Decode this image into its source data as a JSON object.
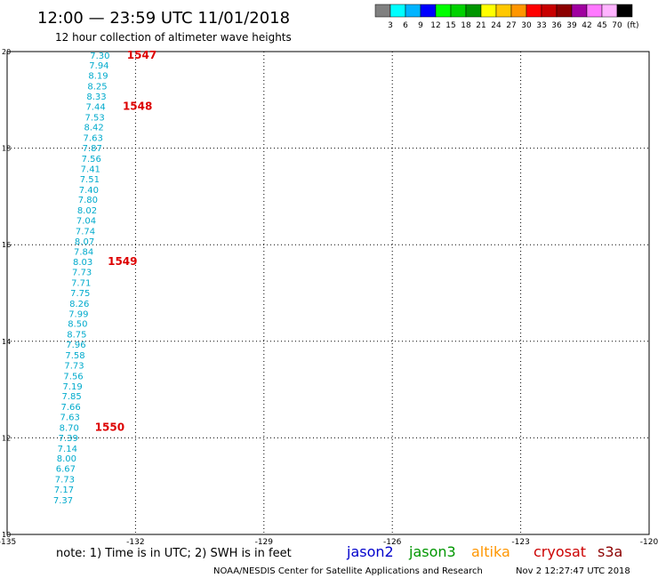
{
  "header": {
    "title": "12:00 — 23:59 UTC 11/01/2018",
    "subtitle": "12 hour collection of altimeter wave heights"
  },
  "legend": {
    "swatches": [
      {
        "color": "#808080",
        "label": "3"
      },
      {
        "color": "#00ffff",
        "label": "6"
      },
      {
        "color": "#00b4ff",
        "label": "9"
      },
      {
        "color": "#0000ff",
        "label": "12"
      },
      {
        "color": "#00ff00",
        "label": "15"
      },
      {
        "color": "#00d200",
        "label": "18"
      },
      {
        "color": "#009600",
        "label": "21"
      },
      {
        "color": "#ffff00",
        "label": "24"
      },
      {
        "color": "#ffc800",
        "label": "27"
      },
      {
        "color": "#ff9600",
        "label": "30"
      },
      {
        "color": "#ff0000",
        "label": "33"
      },
      {
        "color": "#c80000",
        "label": "36"
      },
      {
        "color": "#8c0000",
        "label": "39"
      },
      {
        "color": "#a000a0",
        "label": "42"
      },
      {
        "color": "#ff78ff",
        "label": "45"
      },
      {
        "color": "#ffb4ff",
        "label": "70"
      },
      {
        "color": "#000000",
        "label": ""
      }
    ],
    "unit": "(ft)"
  },
  "footer": {
    "note": "note:  1) Time is in UTC; 2) SWH is in feet",
    "credit": "NOAA/NESDIS Center for Satellite Applications and Research",
    "timestamp": "Nov  2 12:27:47 UTC 2018",
    "satellites": [
      {
        "name": "jason2",
        "color": "#0000cc"
      },
      {
        "name": "jason3",
        "color": "#009600"
      },
      {
        "name": "altika",
        "color": "#ff9600"
      },
      {
        "name": "cryosat",
        "color": "#cc0000"
      },
      {
        "name": "s3a",
        "color": "#8c0000"
      }
    ]
  },
  "chart_data": {
    "type": "scatter",
    "x_ticks": [
      "-135",
      "-132",
      "-129",
      "-126",
      "-123",
      "-120"
    ],
    "y_ticks": [
      "10",
      "12",
      "14",
      "16",
      "18",
      "20"
    ],
    "xlim": [
      -135,
      -120
    ],
    "ylim": [
      10,
      20
    ],
    "grid": true,
    "point_color": "#00aacc",
    "time_color": "#dd0000",
    "points": [
      {
        "lon": -132.6,
        "lat": 19.93,
        "label": "7.30"
      },
      {
        "lon": -132.62,
        "lat": 19.72,
        "label": "7.94"
      },
      {
        "lon": -132.64,
        "lat": 19.51,
        "label": "8.19"
      },
      {
        "lon": -132.66,
        "lat": 19.29,
        "label": "8.25"
      },
      {
        "lon": -132.68,
        "lat": 19.08,
        "label": "8.33"
      },
      {
        "lon": -132.7,
        "lat": 18.87,
        "label": "7.44"
      },
      {
        "lon": -132.72,
        "lat": 18.65,
        "label": "7.53"
      },
      {
        "lon": -132.74,
        "lat": 18.44,
        "label": "8.42"
      },
      {
        "lon": -132.76,
        "lat": 18.22,
        "label": "7.63"
      },
      {
        "lon": -132.78,
        "lat": 18.01,
        "label": "7.87"
      },
      {
        "lon": -132.8,
        "lat": 17.79,
        "label": "7.56"
      },
      {
        "lon": -132.82,
        "lat": 17.58,
        "label": "7.41"
      },
      {
        "lon": -132.84,
        "lat": 17.37,
        "label": "7.51"
      },
      {
        "lon": -132.86,
        "lat": 17.15,
        "label": "7.40"
      },
      {
        "lon": -132.88,
        "lat": 16.94,
        "label": "7.80"
      },
      {
        "lon": -132.9,
        "lat": 16.72,
        "label": "8.02"
      },
      {
        "lon": -132.92,
        "lat": 16.51,
        "label": "7.04"
      },
      {
        "lon": -132.94,
        "lat": 16.29,
        "label": "7.74"
      },
      {
        "lon": -132.96,
        "lat": 16.08,
        "label": "8.07"
      },
      {
        "lon": -132.98,
        "lat": 15.87,
        "label": "7.84"
      },
      {
        "lon": -133.0,
        "lat": 15.65,
        "label": "8.03"
      },
      {
        "lon": -133.02,
        "lat": 15.44,
        "label": "7.73"
      },
      {
        "lon": -133.04,
        "lat": 15.22,
        "label": "7.71"
      },
      {
        "lon": -133.06,
        "lat": 15.01,
        "label": "7.75"
      },
      {
        "lon": -133.08,
        "lat": 14.79,
        "label": "8.26"
      },
      {
        "lon": -133.1,
        "lat": 14.58,
        "label": "7.99"
      },
      {
        "lon": -133.12,
        "lat": 14.37,
        "label": "8.50"
      },
      {
        "lon": -133.14,
        "lat": 14.15,
        "label": "8.75"
      },
      {
        "lon": -133.16,
        "lat": 13.94,
        "label": "7.96"
      },
      {
        "lon": -133.18,
        "lat": 13.72,
        "label": "7.58"
      },
      {
        "lon": -133.2,
        "lat": 13.51,
        "label": "7.73"
      },
      {
        "lon": -133.22,
        "lat": 13.29,
        "label": "7.56"
      },
      {
        "lon": -133.24,
        "lat": 13.08,
        "label": "7.19"
      },
      {
        "lon": -133.26,
        "lat": 12.87,
        "label": "7.85"
      },
      {
        "lon": -133.28,
        "lat": 12.65,
        "label": "7.66"
      },
      {
        "lon": -133.3,
        "lat": 12.44,
        "label": "7.63"
      },
      {
        "lon": -133.32,
        "lat": 12.22,
        "label": "8.70"
      },
      {
        "lon": -133.34,
        "lat": 12.01,
        "label": "7.39"
      },
      {
        "lon": -133.36,
        "lat": 11.79,
        "label": "7.14"
      },
      {
        "lon": -133.38,
        "lat": 11.58,
        "label": "8.00"
      },
      {
        "lon": -133.4,
        "lat": 11.37,
        "label": "6.67"
      },
      {
        "lon": -133.42,
        "lat": 11.15,
        "label": "7.73"
      },
      {
        "lon": -133.44,
        "lat": 10.94,
        "label": "7.17"
      },
      {
        "lon": -133.46,
        "lat": 10.72,
        "label": "7.37"
      }
    ],
    "time_labels": [
      {
        "lon": -132.2,
        "lat": 19.93,
        "label": "1547"
      },
      {
        "lon": -132.3,
        "lat": 18.87,
        "label": "1548"
      },
      {
        "lon": -132.65,
        "lat": 15.65,
        "label": "1549"
      },
      {
        "lon": -132.95,
        "lat": 12.22,
        "label": "1550"
      }
    ]
  }
}
